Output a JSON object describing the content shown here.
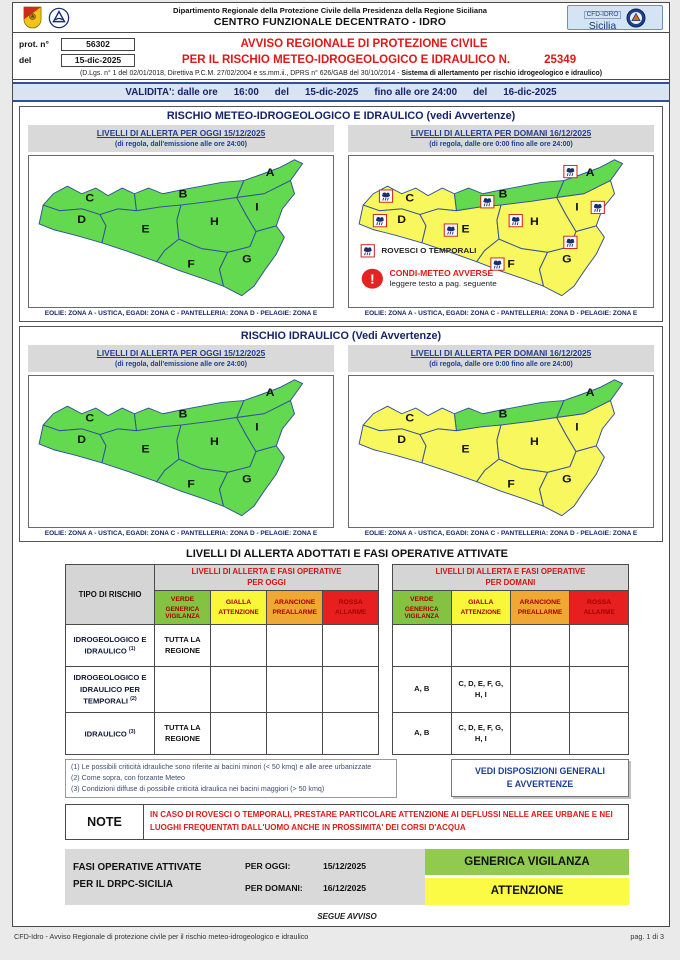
{
  "header": {
    "dept_line": "Dipartimento Regionale della Protezione Civile della Presidenza della Regione Siciliana",
    "center_line": "CENTRO FUNZIONALE DECENTRATO - IDRO",
    "badge_line1": "CFD-IDRO",
    "badge_line2": "Sicilia"
  },
  "protocol": {
    "prot_label": "prot. n°",
    "prot_value": "56302",
    "del_label": "del",
    "del_value": "15-dic-2025"
  },
  "title": {
    "line1": "AVVISO REGIONALE DI PROTEZIONE CIVILE",
    "line2": "PER IL RISCHIO METEO-IDROGEOLOGICO E IDRAULICO N.",
    "number": "25349",
    "law_normal": "(D.Lgs. n° 1 del 02/01/2018, Direttiva P.C.M. 27/02/2004 e ss.mm.ii., DPRS n° 626/GAB del 30/10/2014 - ",
    "law_bold": "Sistema di allertamento per rischio idrogeologico e idraulico)"
  },
  "validity": {
    "parts": [
      "VALIDITA': dalle ore",
      "16:00",
      "del",
      "15-dic-2025",
      "fino alle ore 24:00",
      "del",
      "16-dic-2025"
    ]
  },
  "sections": [
    {
      "title": "RISCHIO METEO-IDROGEOLOGICO E IDRAULICO (vedi Avvertenze)",
      "panels": [
        {
          "header": "LIVELLI DI ALLERTA PER OGGI 15/12/2025",
          "subheader": "(di regola, dall'emissione alle ore 24:00)",
          "zones": {
            "A": "verde",
            "B": "verde",
            "C": "verde",
            "D": "verde",
            "E": "verde",
            "F": "verde",
            "G": "verde",
            "H": "verde",
            "I": "verde"
          },
          "storm_icons": false,
          "legend": false,
          "footer": "EOLIE: ZONA A - USTICA, EGADI: ZONA C - PANTELLERIA: ZONA D - PELAGIE: ZONA E"
        },
        {
          "header": "LIVELLI DI ALLERTA PER DOMANI 16/12/2025",
          "subheader": "(di regola, dalle ore 0:00 fino alle ore 24:00)",
          "zones": {
            "A": "verde",
            "B": "verde",
            "C": "gialla",
            "D": "gialla",
            "E": "gialla",
            "F": "gialla",
            "G": "gialla",
            "H": "gialla",
            "I": "gialla"
          },
          "storm_icons": true,
          "legend": true,
          "footer": "EOLIE: ZONA A - USTICA, EGADI: ZONA C - PANTELLERIA: ZONA D - PELAGIE: ZONA E"
        }
      ]
    },
    {
      "title": "RISCHIO IDRAULICO (Vedi Avvertenze)",
      "panels": [
        {
          "header": "LIVELLI DI ALLERTA PER OGGI 15/12/2025",
          "subheader": "(di regola, dall'emissione alle ore 24:00)",
          "zones": {
            "A": "verde",
            "B": "verde",
            "C": "verde",
            "D": "verde",
            "E": "verde",
            "F": "verde",
            "G": "verde",
            "H": "verde",
            "I": "verde"
          },
          "storm_icons": false,
          "legend": false,
          "footer": "EOLIE: ZONA A - USTICA, EGADI: ZONA C - PANTELLERIA: ZONA D - PELAGIE: ZONA E"
        },
        {
          "header": "LIVELLI DI ALLERTA PER DOMANI 16/12/2025",
          "subheader": "(di regola, dalle ore 0:00 fino alle ore 24:00)",
          "zones": {
            "A": "verde",
            "B": "verde",
            "C": "gialla",
            "D": "gialla",
            "E": "gialla",
            "F": "gialla",
            "G": "gialla",
            "H": "gialla",
            "I": "gialla"
          },
          "storm_icons": false,
          "legend": false,
          "footer": "EOLIE: ZONA A - USTICA, EGADI: ZONA C - PANTELLERIA: ZONA D - PELAGIE: ZONA E"
        }
      ]
    }
  ],
  "map_legend": {
    "storm_label": "ROVESCI O TEMPORALI",
    "adverse_title": "CONDI-METEO AVVERSE",
    "adverse_sub": "leggere testo a pag. seguente"
  },
  "alert_table": {
    "title": "LIVELLI DI ALLERTA ADOTTATI E FASI OPERATIVE ATTIVATE",
    "risk_header": "TIPO DI RISCHIO",
    "group_today_line1": "LIVELLI DI ALLERTA E FASI OPERATIVE",
    "group_today_line2": "PER OGGI",
    "group_tomorrow_line1": "LIVELLI DI ALLERTA E FASI OPERATIVE",
    "group_tomorrow_line2": "PER DOMANI",
    "columns": [
      {
        "name": "VERDE",
        "sub": "GENERICA VIGILANZA"
      },
      {
        "name": "GIALLA",
        "sub": "ATTENZIONE"
      },
      {
        "name": "ARANCIONE",
        "sub": "PREALLARME"
      },
      {
        "name": "ROSSA",
        "sub": "ALLARME"
      }
    ],
    "rows": [
      {
        "label": "IDROGEOLOGICO E IDRAULICO",
        "sup": "(1)",
        "today": [
          "TUTTA LA REGIONE",
          "",
          "",
          ""
        ],
        "tomorrow": [
          "",
          "",
          "",
          ""
        ]
      },
      {
        "label": "IDROGEOLOGICO E IDRAULICO PER TEMPORALI",
        "sup": "(2)",
        "today": [
          "",
          "",
          "",
          ""
        ],
        "tomorrow": [
          "A, B",
          "C, D, E, F, G, H, I",
          "",
          ""
        ]
      },
      {
        "label": "IDRAULICO",
        "sup": "(3)",
        "today": [
          "TUTTA LA REGIONE",
          "",
          "",
          ""
        ],
        "tomorrow": [
          "A, B",
          "C, D, E, F, G, H, I",
          "",
          ""
        ]
      }
    ]
  },
  "footnotes": [
    "(1) Le possibili criticità idrauliche sono riferite ai bacini minori (< 50 kmq) e alle aree urbanizzate",
    "(2) Come sopra, con forzante Meteo",
    "(3) Condizioni diffuse di possibile criticità idraulica nei bacini maggiori (> 50 kmq)"
  ],
  "disposizioni_button_line1": "VEDI DISPOSIZIONI GENERALI",
  "disposizioni_button_line2": "E AVVERTENZE",
  "note": {
    "label": "NOTE",
    "text": "IN CASO DI ROVESCI O TEMPORALI, PRESTARE PARTICOLARE ATTENZIONE AI DEFLUSSI NELLE AREE URBANE E NEI LUOGHI FREQUENTATI DALL'UOMO ANCHE IN PROSSIMITA' DEI CORSI D'ACQUA"
  },
  "fasi": {
    "label_line1": "FASI OPERATIVE ATTIVATE",
    "label_line2": "PER IL DRPC-SICILIA",
    "today_label": "PER OGGI:",
    "today_date": "15/12/2025",
    "today_phase": "GENERICA VIGILANZA",
    "tomorrow_label": "PER DOMANI:",
    "tomorrow_date": "16/12/2025",
    "tomorrow_phase": "ATTENZIONE"
  },
  "segue": "SEGUE AVVISO",
  "footer": {
    "left": "CFD-Idro - Avviso Regionale di protezione civile per il rischio meteo-idrogeologico e idraulico",
    "right": "pag. 1 di 3"
  },
  "colors": {
    "map_green": "#63d94f",
    "map_yellow": "#f8f85e",
    "map_border": "#34519b",
    "table_green": "#84c341",
    "table_yellow": "#f8f838",
    "table_orange": "#f0a832",
    "table_red": "#e81f1f",
    "bar_green": "#92c94f",
    "bar_yellow": "#fbfb45",
    "navy": "#1e3d96",
    "red": "#e01818"
  }
}
